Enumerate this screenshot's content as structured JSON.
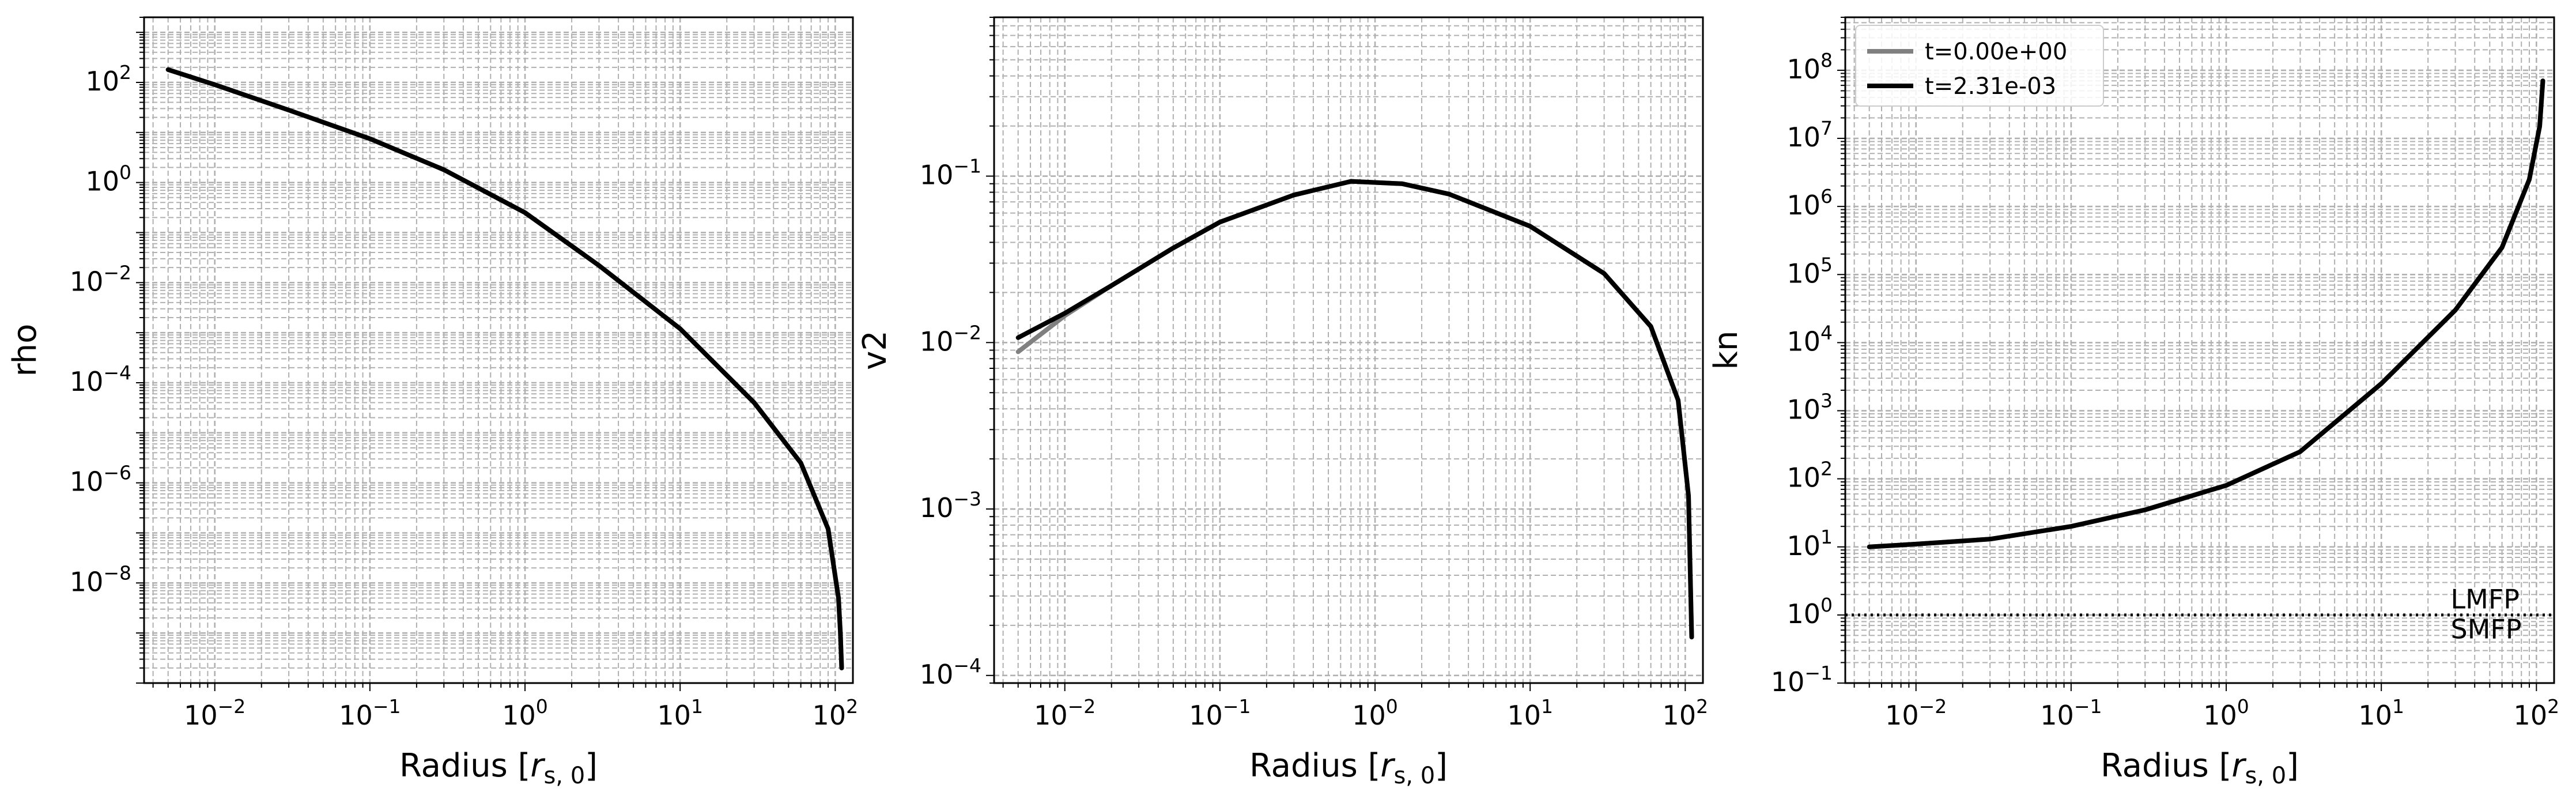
{
  "chart_data": [
    {
      "type": "line",
      "xscale": "log",
      "yscale": "log",
      "xlim": [
        0.0035,
        130
      ],
      "ylim": [
        1e-10,
        2000
      ],
      "xlabel": "Radius [",
      "xlabel_math": "r",
      "xlabel_sub": "s, 0",
      "xlabel_end": "]",
      "ylabel": "rho",
      "grid": true,
      "xticks": [
        {
          "base": "10",
          "exp": "−2",
          "v": 0.01
        },
        {
          "base": "10",
          "exp": "−1",
          "v": 0.1
        },
        {
          "base": "10",
          "exp": "0",
          "v": 1
        },
        {
          "base": "10",
          "exp": "1",
          "v": 10
        },
        {
          "base": "10",
          "exp": "2",
          "v": 100
        }
      ],
      "yticks": [
        {
          "base": "10",
          "exp": "2",
          "v": 100
        },
        {
          "base": "10",
          "exp": "0",
          "v": 1
        },
        {
          "base": "10",
          "exp": "−2",
          "v": 0.01
        },
        {
          "base": "10",
          "exp": "−4",
          "v": 0.0001
        },
        {
          "base": "10",
          "exp": "−6",
          "v": 1e-06
        },
        {
          "base": "10",
          "exp": "−8",
          "v": 1e-08
        }
      ],
      "series": [
        {
          "color": "#808080",
          "x": [
            0.005,
            0.01,
            0.03,
            0.1,
            0.3,
            1,
            3,
            10,
            30,
            60,
            90,
            105,
            108,
            110
          ],
          "y": [
            180,
            90,
            28,
            7.5,
            1.8,
            0.25,
            0.022,
            0.0012,
            4e-05,
            2.5e-06,
            1.2e-07,
            5e-09,
            1e-09,
            2e-10
          ]
        },
        {
          "color": "#000000",
          "x": [
            0.005,
            0.01,
            0.03,
            0.1,
            0.3,
            1,
            3,
            10,
            30,
            60,
            90,
            105,
            108,
            110
          ],
          "y": [
            180,
            90,
            28,
            7.5,
            1.8,
            0.25,
            0.022,
            0.0012,
            4e-05,
            2.5e-06,
            1.2e-07,
            5e-09,
            1e-09,
            2e-10
          ]
        }
      ]
    },
    {
      "type": "line",
      "xscale": "log",
      "yscale": "log",
      "xlim": [
        0.0035,
        130
      ],
      "ylim": [
        9e-05,
        0.9
      ],
      "xlabel": "Radius [",
      "xlabel_math": "r",
      "xlabel_sub": "s, 0",
      "xlabel_end": "]",
      "ylabel": "v2",
      "grid": true,
      "xticks": [
        {
          "base": "10",
          "exp": "−2",
          "v": 0.01
        },
        {
          "base": "10",
          "exp": "−1",
          "v": 0.1
        },
        {
          "base": "10",
          "exp": "0",
          "v": 1
        },
        {
          "base": "10",
          "exp": "1",
          "v": 10
        },
        {
          "base": "10",
          "exp": "2",
          "v": 100
        }
      ],
      "yticks": [
        {
          "base": "10",
          "exp": "−1",
          "v": 0.1
        },
        {
          "base": "10",
          "exp": "−2",
          "v": 0.01
        },
        {
          "base": "10",
          "exp": "−3",
          "v": 0.001
        },
        {
          "base": "10",
          "exp": "−4",
          "v": 0.0001
        }
      ],
      "series": [
        {
          "color": "#808080",
          "x": [
            0.005,
            0.01,
            0.02,
            0.05,
            0.1,
            0.3,
            0.7,
            1.5,
            3,
            10,
            30,
            60,
            90,
            105,
            110
          ],
          "y": [
            0.0088,
            0.0145,
            0.022,
            0.037,
            0.053,
            0.077,
            0.093,
            0.09,
            0.078,
            0.05,
            0.026,
            0.0125,
            0.0045,
            0.0012,
            0.00017
          ]
        },
        {
          "color": "#000000",
          "x": [
            0.005,
            0.01,
            0.02,
            0.05,
            0.1,
            0.3,
            0.7,
            1.5,
            3,
            10,
            30,
            60,
            90,
            105,
            110
          ],
          "y": [
            0.0107,
            0.015,
            0.022,
            0.037,
            0.053,
            0.077,
            0.093,
            0.09,
            0.078,
            0.05,
            0.026,
            0.0125,
            0.0045,
            0.0012,
            0.00017
          ]
        }
      ]
    },
    {
      "type": "line",
      "xscale": "log",
      "yscale": "log",
      "xlim": [
        0.0035,
        130
      ],
      "ylim": [
        0.1,
        600000000.0
      ],
      "xlabel": "Radius [",
      "xlabel_math": "r",
      "xlabel_sub": "s, 0",
      "xlabel_end": "]",
      "ylabel": "kn",
      "grid": true,
      "xticks": [
        {
          "base": "10",
          "exp": "−2",
          "v": 0.01
        },
        {
          "base": "10",
          "exp": "−1",
          "v": 0.1
        },
        {
          "base": "10",
          "exp": "0",
          "v": 1
        },
        {
          "base": "10",
          "exp": "1",
          "v": 10
        },
        {
          "base": "10",
          "exp": "2",
          "v": 100
        }
      ],
      "yticks": [
        {
          "base": "10",
          "exp": "8",
          "v": 100000000.0
        },
        {
          "base": "10",
          "exp": "7",
          "v": 10000000.0
        },
        {
          "base": "10",
          "exp": "6",
          "v": 1000000.0
        },
        {
          "base": "10",
          "exp": "5",
          "v": 100000.0
        },
        {
          "base": "10",
          "exp": "4",
          "v": 10000.0
        },
        {
          "base": "10",
          "exp": "3",
          "v": 1000.0
        },
        {
          "base": "10",
          "exp": "2",
          "v": 100
        },
        {
          "base": "10",
          "exp": "1",
          "v": 10
        },
        {
          "base": "10",
          "exp": "0",
          "v": 1
        },
        {
          "base": "10",
          "exp": "−1",
          "v": 0.1
        }
      ],
      "hline": {
        "y": 1,
        "style": "dotted",
        "color": "#000000"
      },
      "annotations": [
        {
          "text": "LMFP",
          "x": 28,
          "y": 1.7
        },
        {
          "text": "SMFP",
          "x": 28,
          "y": 0.62
        }
      ],
      "legend": {
        "placement": "upper-left",
        "entries": [
          "t=0.00e+00",
          "t=2.31e-03"
        ]
      },
      "series": [
        {
          "name": "t=0.00e+00",
          "color": "#808080",
          "x": [
            0.005,
            0.01,
            0.03,
            0.1,
            0.3,
            1,
            3,
            10,
            30,
            60,
            90,
            105,
            110
          ],
          "y": [
            10,
            11,
            13,
            20,
            35,
            80,
            250,
            2500,
            30000,
            250000,
            2500000,
            15000000,
            70000000
          ]
        },
        {
          "name": "t=2.31e-03",
          "color": "#000000",
          "x": [
            0.005,
            0.01,
            0.03,
            0.1,
            0.3,
            1,
            3,
            10,
            30,
            60,
            90,
            105,
            110
          ],
          "y": [
            10,
            11,
            13,
            20,
            35,
            80,
            250,
            2500,
            30000,
            250000,
            2500000,
            15000000,
            70000000
          ]
        }
      ]
    }
  ]
}
